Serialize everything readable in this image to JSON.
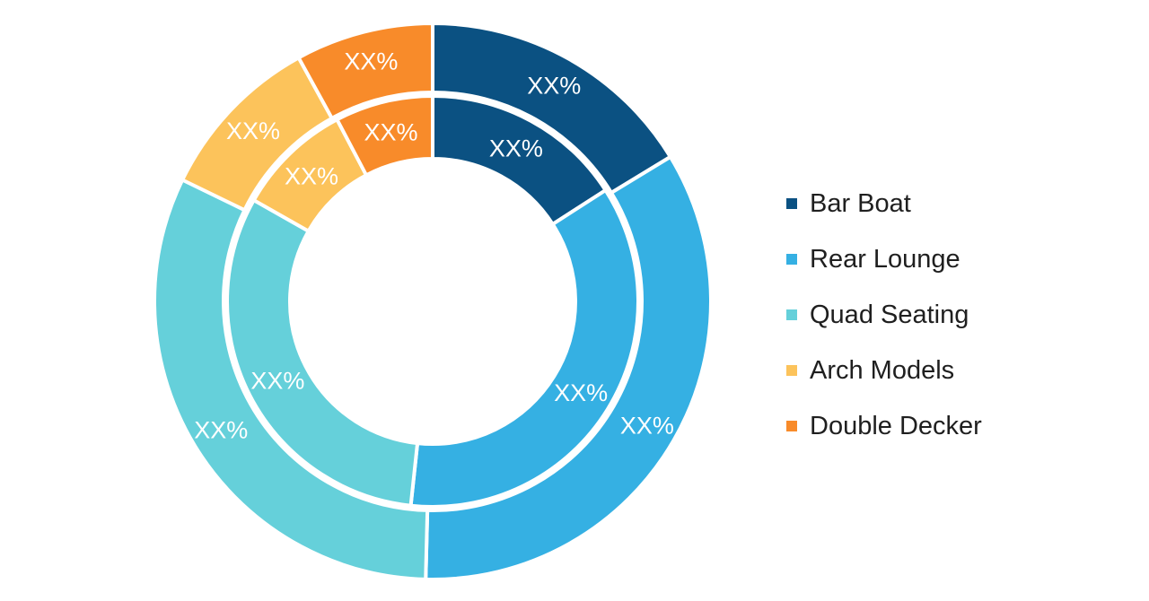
{
  "chart_data": {
    "type": "pie",
    "variant": "nested-donut",
    "title": "",
    "categories": [
      "Bar Boat",
      "Rear Lounge",
      "Quad Seating",
      "Arch Models",
      "Double Decker"
    ],
    "colors": [
      "#0b5182",
      "#35b0e3",
      "#65d0da",
      "#fcc35b",
      "#f88b2a"
    ],
    "rings": [
      {
        "ring": "outer",
        "values": [
          16.3,
          34.1,
          31.8,
          9.8,
          8.0
        ],
        "labels": [
          "XX%",
          "XX%",
          "XX%",
          "XX%",
          "XX%"
        ]
      },
      {
        "ring": "inner",
        "values": [
          15.9,
          35.8,
          31.5,
          9.1,
          7.7
        ],
        "labels": [
          "XX%",
          "XX%",
          "XX%",
          "XX%",
          "XX%"
        ]
      }
    ],
    "legend": {
      "position": "right",
      "entries": [
        "Bar Boat",
        "Rear Lounge",
        "Quad Seating",
        "Arch Models",
        "Double Decker"
      ]
    }
  }
}
